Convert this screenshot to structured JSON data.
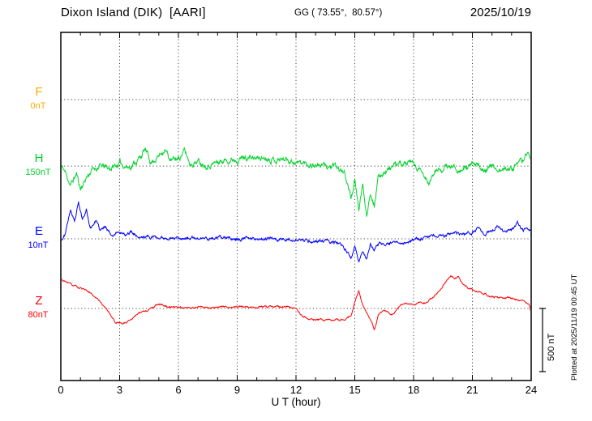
{
  "header": {
    "station_title": "Dixon Island (DIK)  [AARI]",
    "gg_coords": "GG ( 73.55°,  80.57°)",
    "date": "2025/10/19"
  },
  "plotted_note": "Plotted at 2025/11/19 00:45 UT",
  "scalebar": {
    "label": "500 nT",
    "nT": 500,
    "px": 78
  },
  "chart_data": {
    "type": "line",
    "title": "Dixon Island (DIK) [AARI] magnetogram 2025/10/19",
    "xlabel": "U T (hour)",
    "x_range": [
      0,
      24
    ],
    "xticks": [
      0,
      3,
      6,
      9,
      12,
      15,
      18,
      21,
      24
    ],
    "minor_tick_every_hours": 1,
    "grid": "dotted vertical lines every 3 h; dotted horizontal baseline per component",
    "legend_position": "left baseline labels",
    "y_scale": "500 nT scale bar at right; values below are nT offsets from each component baseline",
    "series": [
      {
        "name": "F",
        "color": "#ffaa00",
        "baseline_label": "0nT",
        "baseline_frac": 0.193,
        "noise_amp_nT": 0,
        "seed": 7,
        "note": "no visible trace (baseline only)",
        "anchors": []
      },
      {
        "name": "H",
        "color": "#00d42a",
        "baseline_label": "150nT",
        "baseline_frac": 0.384,
        "noise_amp_nT": 31,
        "seed": 11,
        "anchors": [
          [
            0,
            0
          ],
          [
            0.2,
            -40
          ],
          [
            0.5,
            -150
          ],
          [
            0.8,
            -60
          ],
          [
            1,
            -180
          ],
          [
            1.3,
            -90
          ],
          [
            1.6,
            -30
          ],
          [
            2,
            0
          ],
          [
            2.5,
            -20
          ],
          [
            3,
            20
          ],
          [
            3.5,
            -10
          ],
          [
            4,
            60
          ],
          [
            4.3,
            130
          ],
          [
            4.6,
            30
          ],
          [
            5,
            80
          ],
          [
            5.3,
            140
          ],
          [
            5.6,
            40
          ],
          [
            6,
            60
          ],
          [
            6.3,
            120
          ],
          [
            6.6,
            20
          ],
          [
            7,
            40
          ],
          [
            7.5,
            10
          ],
          [
            8,
            30
          ],
          [
            8.5,
            50
          ],
          [
            9,
            60
          ],
          [
            9.5,
            70
          ],
          [
            10,
            60
          ],
          [
            10.5,
            70
          ],
          [
            11,
            50
          ],
          [
            11.5,
            60
          ],
          [
            12,
            30
          ],
          [
            12.5,
            20
          ],
          [
            13,
            10
          ],
          [
            13.5,
            0
          ],
          [
            14,
            -10
          ],
          [
            14.5,
            -60
          ],
          [
            14.8,
            -250
          ],
          [
            15,
            -120
          ],
          [
            15.2,
            -350
          ],
          [
            15.4,
            -150
          ],
          [
            15.6,
            -380
          ],
          [
            15.8,
            -200
          ],
          [
            16,
            -300
          ],
          [
            16.2,
            -100
          ],
          [
            16.5,
            -40
          ],
          [
            17,
            0
          ],
          [
            17.5,
            20
          ],
          [
            18,
            10
          ],
          [
            18.5,
            -80
          ],
          [
            18.8,
            -140
          ],
          [
            19.1,
            -40
          ],
          [
            19.5,
            -20
          ],
          [
            20,
            0
          ],
          [
            20.5,
            -30
          ],
          [
            21,
            10
          ],
          [
            21.5,
            -20
          ],
          [
            22,
            0
          ],
          [
            22.5,
            -40
          ],
          [
            23,
            -10
          ],
          [
            23.5,
            20
          ],
          [
            23.8,
            120
          ],
          [
            24,
            40
          ]
        ]
      },
      {
        "name": "E",
        "color": "#0000ff",
        "baseline_label": "10nT",
        "baseline_frac": 0.593,
        "noise_amp_nT": 17,
        "seed": 23,
        "anchors": [
          [
            0,
            -10
          ],
          [
            0.2,
            30
          ],
          [
            0.5,
            230
          ],
          [
            0.7,
            120
          ],
          [
            0.9,
            280
          ],
          [
            1.1,
            150
          ],
          [
            1.3,
            240
          ],
          [
            1.5,
            80
          ],
          [
            1.8,
            150
          ],
          [
            2,
            60
          ],
          [
            2.3,
            100
          ],
          [
            2.6,
            30
          ],
          [
            3,
            60
          ],
          [
            3.3,
            20
          ],
          [
            3.6,
            60
          ],
          [
            4,
            10
          ],
          [
            4.5,
            20
          ],
          [
            5,
            5
          ],
          [
            6,
            10
          ],
          [
            7,
            0
          ],
          [
            8,
            5
          ],
          [
            9,
            0
          ],
          [
            10,
            5
          ],
          [
            11,
            0
          ],
          [
            12,
            -10
          ],
          [
            12.5,
            -15
          ],
          [
            13,
            -20
          ],
          [
            13.5,
            -20
          ],
          [
            14,
            -30
          ],
          [
            14.5,
            -80
          ],
          [
            14.8,
            -150
          ],
          [
            15,
            -60
          ],
          [
            15.2,
            -180
          ],
          [
            15.4,
            -90
          ],
          [
            15.6,
            -160
          ],
          [
            15.8,
            -40
          ],
          [
            16,
            -100
          ],
          [
            16.3,
            -30
          ],
          [
            16.6,
            -60
          ],
          [
            17,
            -20
          ],
          [
            17.5,
            -30
          ],
          [
            18,
            -10
          ],
          [
            18.5,
            10
          ],
          [
            19,
            30
          ],
          [
            19.5,
            20
          ],
          [
            20,
            40
          ],
          [
            20.5,
            30
          ],
          [
            21,
            50
          ],
          [
            21.3,
            90
          ],
          [
            21.6,
            40
          ],
          [
            22,
            60
          ],
          [
            22.3,
            110
          ],
          [
            22.6,
            50
          ],
          [
            23,
            70
          ],
          [
            23.3,
            120
          ],
          [
            23.6,
            60
          ],
          [
            24,
            80
          ]
        ]
      },
      {
        "name": "Z",
        "color": "#ff0000",
        "baseline_label": "80nT",
        "baseline_frac": 0.793,
        "noise_amp_nT": 10,
        "seed": 31,
        "anchors": [
          [
            0,
            230
          ],
          [
            0.5,
            190
          ],
          [
            1,
            160
          ],
          [
            1.5,
            120
          ],
          [
            2,
            60
          ],
          [
            2.5,
            -40
          ],
          [
            2.8,
            -110
          ],
          [
            3.2,
            -120
          ],
          [
            3.6,
            -80
          ],
          [
            4,
            -30
          ],
          [
            4.5,
            -10
          ],
          [
            5,
            40
          ],
          [
            5.5,
            10
          ],
          [
            6,
            15
          ],
          [
            6.5,
            5
          ],
          [
            7,
            10
          ],
          [
            8,
            10
          ],
          [
            9,
            15
          ],
          [
            10,
            10
          ],
          [
            11,
            15
          ],
          [
            12,
            5
          ],
          [
            12.3,
            -60
          ],
          [
            12.6,
            -85
          ],
          [
            13,
            -90
          ],
          [
            13.5,
            -90
          ],
          [
            14,
            -95
          ],
          [
            14.5,
            -90
          ],
          [
            14.8,
            -60
          ],
          [
            15.2,
            140
          ],
          [
            15.4,
            30
          ],
          [
            15.6,
            -30
          ],
          [
            15.8,
            -90
          ],
          [
            16,
            -170
          ],
          [
            16.2,
            -60
          ],
          [
            16.5,
            -10
          ],
          [
            16.8,
            -50
          ],
          [
            17,
            -40
          ],
          [
            17.3,
            20
          ],
          [
            17.6,
            40
          ],
          [
            18,
            30
          ],
          [
            18.3,
            50
          ],
          [
            18.6,
            40
          ],
          [
            19,
            90
          ],
          [
            19.3,
            140
          ],
          [
            19.6,
            200
          ],
          [
            19.9,
            260
          ],
          [
            20.1,
            240
          ],
          [
            20.3,
            250
          ],
          [
            20.5,
            190
          ],
          [
            20.8,
            160
          ],
          [
            21,
            150
          ],
          [
            21.5,
            120
          ],
          [
            22,
            95
          ],
          [
            22.5,
            85
          ],
          [
            23,
            80
          ],
          [
            23.4,
            65
          ],
          [
            23.7,
            55
          ],
          [
            23.9,
            30
          ],
          [
            24,
            -40
          ]
        ]
      }
    ]
  }
}
